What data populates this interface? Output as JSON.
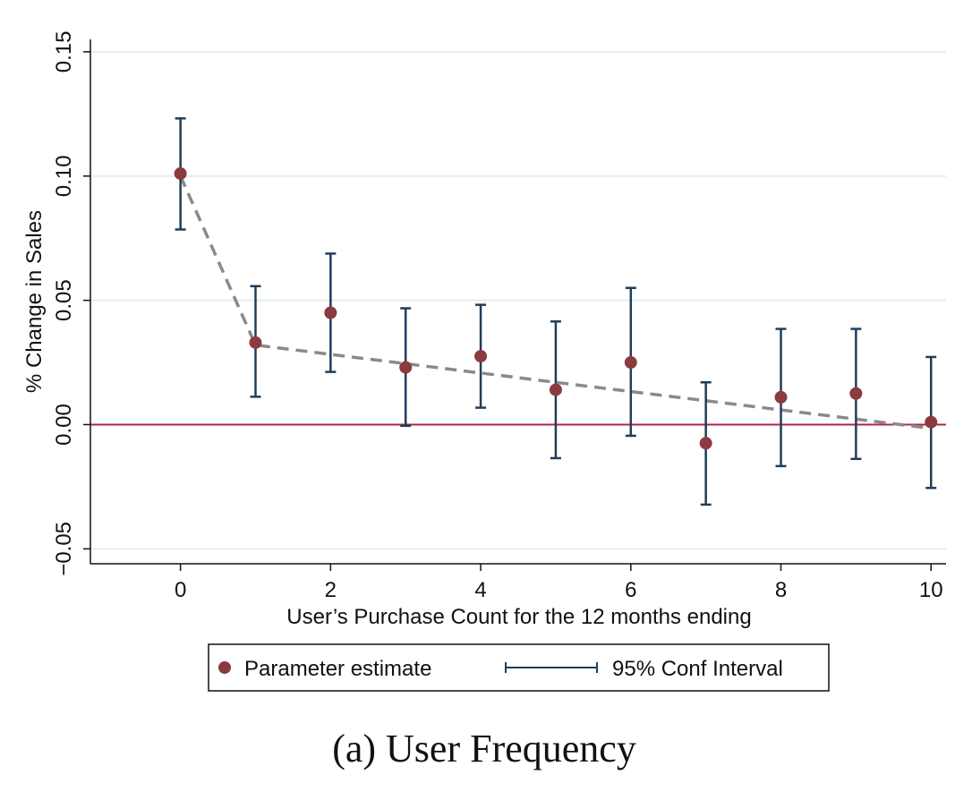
{
  "chart_data": {
    "type": "scatter",
    "xlabel": "User’s Purchase Count for the 12 months ending",
    "ylabel": "% Change in Sales",
    "xlim": [
      -1.2,
      10.2
    ],
    "ylim": [
      -0.056,
      0.155
    ],
    "xticks": [
      0,
      2,
      4,
      6,
      8,
      10
    ],
    "yticks": [
      -0.05,
      0.0,
      0.05,
      0.1,
      0.15
    ],
    "ytick_labels": [
      "−0.05",
      "0.00",
      "0.05",
      "0.10",
      "0.15"
    ],
    "grid": true,
    "legend_position": "bottom",
    "reference_line_y": 0.0,
    "series": [
      {
        "name": "Parameter estimate",
        "marker_color": "#8b3a3f",
        "x": [
          0,
          1,
          2,
          3,
          4,
          5,
          6,
          7,
          8,
          9,
          10
        ],
        "y": [
          0.101,
          0.033,
          0.045,
          0.023,
          0.0275,
          0.014,
          0.025,
          -0.0075,
          0.011,
          0.0125,
          0.001
        ]
      },
      {
        "name": "95% Conf Interval",
        "color": "#1f3e5a",
        "x": [
          0,
          1,
          2,
          3,
          4,
          5,
          6,
          7,
          8,
          9,
          10
        ],
        "lower": [
          0.0785,
          0.0112,
          0.0212,
          -0.0005,
          0.0068,
          -0.0135,
          -0.0045,
          -0.0322,
          -0.0167,
          -0.0138,
          -0.0255
        ],
        "upper": [
          0.1232,
          0.0557,
          0.0688,
          0.0468,
          0.0482,
          0.0415,
          0.055,
          0.017,
          0.0385,
          0.0385,
          0.0272
        ]
      }
    ],
    "trend_line": {
      "style": "dashed",
      "color": "#8a8a8a",
      "x": [
        0,
        1,
        5,
        10
      ],
      "y": [
        0.1,
        0.032,
        0.017,
        -0.0015
      ]
    },
    "reference_line_color": "#b0244b",
    "grid_color": "#e3eeee"
  },
  "legend": {
    "estimate_label": "Parameter estimate",
    "ci_label": "95% Conf Interval"
  },
  "caption": "(a) User Frequency"
}
